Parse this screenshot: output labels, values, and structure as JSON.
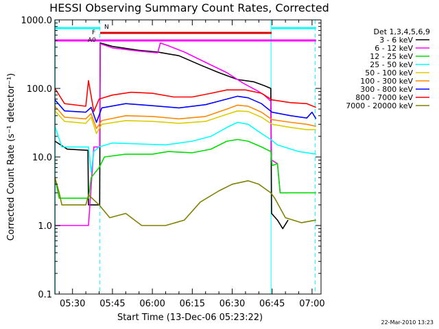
{
  "chart_data": {
    "type": "line",
    "title": "HESSI Observing Summary Count Rates, Corrected",
    "xlabel": "Start Time (13-Dec-06 05:23:22)",
    "ylabel": "Corrected Count Rate (s⁻¹ detector⁻¹)",
    "y_scale": "log",
    "ylim": [
      0.1,
      1000
    ],
    "y_ticks": [
      "1000.0",
      "100.0",
      "10.0",
      "1.0",
      "0.1"
    ],
    "x_range_min": [
      23.37,
      123.37
    ],
    "x_ticks": [
      {
        "min": 30,
        "label": "05:30"
      },
      {
        "min": 45,
        "label": "05:45"
      },
      {
        "min": 60,
        "label": "06:00"
      },
      {
        "min": 75,
        "label": "06:15"
      },
      {
        "min": 90,
        "label": "06:30"
      },
      {
        "min": 105,
        "label": "06:45"
      },
      {
        "min": 120,
        "label": "07:00"
      }
    ],
    "legend_title": "Det 1,3,4,5,6,9",
    "legend_position": "right",
    "series": [
      {
        "name": "3 - 6 keV",
        "color": "#000000",
        "points": [
          [
            23.4,
            17
          ],
          [
            28,
            13
          ],
          [
            35.8,
            12.5
          ],
          [
            36,
            2
          ],
          [
            39,
            2
          ],
          [
            40.2,
            2
          ],
          [
            40.4,
            460
          ],
          [
            45,
            410
          ],
          [
            55,
            360
          ],
          [
            62,
            340
          ],
          [
            70,
            300
          ],
          [
            78,
            220
          ],
          [
            85,
            170
          ],
          [
            92,
            135
          ],
          [
            98,
            125
          ],
          [
            102,
            110
          ],
          [
            104.5,
            100
          ],
          [
            104.8,
            1.5
          ],
          [
            107,
            1.2
          ],
          [
            109,
            0.9
          ],
          [
            111,
            1.2
          ]
        ]
      },
      {
        "name": "6 - 12 keV",
        "color": "#ff00ff",
        "points": [
          [
            23.4,
            1
          ],
          [
            36,
            1
          ],
          [
            38,
            14
          ],
          [
            40.2,
            14
          ],
          [
            40.4,
            450
          ],
          [
            45,
            390
          ],
          [
            55,
            350
          ],
          [
            62,
            330
          ],
          [
            63,
            460
          ],
          [
            66,
            420
          ],
          [
            72,
            340
          ],
          [
            80,
            240
          ],
          [
            88,
            170
          ],
          [
            94,
            120
          ],
          [
            100,
            90
          ],
          [
            102,
            80
          ],
          [
            104.5,
            65
          ],
          [
            104.8,
            9
          ],
          [
            107,
            8
          ],
          [
            108,
            3
          ],
          [
            111,
            3
          ]
        ]
      },
      {
        "name": "12 - 25 keV",
        "color": "#00dd00",
        "points": [
          [
            23.4,
            5
          ],
          [
            25,
            2.5
          ],
          [
            36,
            2.5
          ],
          [
            37,
            5
          ],
          [
            40,
            7
          ],
          [
            42,
            10
          ],
          [
            50,
            11
          ],
          [
            60,
            11
          ],
          [
            66,
            12
          ],
          [
            75,
            11.5
          ],
          [
            82,
            13
          ],
          [
            88,
            17
          ],
          [
            92,
            18
          ],
          [
            96,
            17
          ],
          [
            101,
            14
          ],
          [
            104.5,
            12
          ],
          [
            105,
            7.5
          ],
          [
            107,
            8
          ],
          [
            108,
            3
          ],
          [
            120,
            3
          ],
          [
            121.5,
            3
          ]
        ]
      },
      {
        "name": "25 - 50 keV",
        "color": "#00ffff",
        "points": [
          [
            23.4,
            28
          ],
          [
            26,
            14
          ],
          [
            36,
            14
          ],
          [
            37,
            6
          ],
          [
            38,
            12
          ],
          [
            40,
            14
          ],
          [
            45,
            16
          ],
          [
            55,
            15.5
          ],
          [
            65,
            15
          ],
          [
            75,
            17
          ],
          [
            82,
            20
          ],
          [
            88,
            27
          ],
          [
            92,
            32
          ],
          [
            96,
            30
          ],
          [
            101,
            22
          ],
          [
            104.5,
            18
          ],
          [
            107,
            15
          ],
          [
            115,
            12
          ],
          [
            121.5,
            11
          ]
        ]
      },
      {
        "name": "50 - 100 keV",
        "color": "#ddcc00",
        "points": [
          [
            23.4,
            47
          ],
          [
            27,
            33
          ],
          [
            35,
            31
          ],
          [
            37,
            38
          ],
          [
            39,
            22
          ],
          [
            41,
            30
          ],
          [
            50,
            34
          ],
          [
            60,
            33
          ],
          [
            70,
            31
          ],
          [
            80,
            33
          ],
          [
            88,
            42
          ],
          [
            92,
            47
          ],
          [
            96,
            46
          ],
          [
            101,
            38
          ],
          [
            105,
            30
          ],
          [
            112,
            27
          ],
          [
            118,
            25
          ],
          [
            121.5,
            25
          ]
        ]
      },
      {
        "name": "100 - 300 keV",
        "color": "#ff8800",
        "points": [
          [
            23.4,
            55
          ],
          [
            27,
            38
          ],
          [
            35,
            36
          ],
          [
            37,
            43
          ],
          [
            39,
            26
          ],
          [
            41,
            34
          ],
          [
            50,
            40
          ],
          [
            60,
            39
          ],
          [
            70,
            36
          ],
          [
            80,
            39
          ],
          [
            88,
            50
          ],
          [
            92,
            57
          ],
          [
            96,
            55
          ],
          [
            101,
            45
          ],
          [
            105,
            35
          ],
          [
            112,
            32
          ],
          [
            118,
            30
          ],
          [
            121.5,
            28
          ]
        ]
      },
      {
        "name": "300 - 800 keV",
        "color": "#0000ff",
        "points": [
          [
            23.4,
            68
          ],
          [
            27,
            47
          ],
          [
            35,
            45
          ],
          [
            37,
            53
          ],
          [
            39,
            32
          ],
          [
            41,
            52
          ],
          [
            50,
            60
          ],
          [
            60,
            56
          ],
          [
            70,
            52
          ],
          [
            80,
            58
          ],
          [
            88,
            70
          ],
          [
            92,
            77
          ],
          [
            96,
            73
          ],
          [
            101,
            60
          ],
          [
            105,
            45
          ],
          [
            112,
            40
          ],
          [
            118,
            37
          ],
          [
            120,
            45
          ],
          [
            121.5,
            36
          ]
        ]
      },
      {
        "name": "800 - 7000 keV",
        "color": "#ff0000",
        "points": [
          [
            23.4,
            100
          ],
          [
            27,
            60
          ],
          [
            35,
            55
          ],
          [
            36,
            130
          ],
          [
            38,
            46
          ],
          [
            40,
            70
          ],
          [
            45,
            80
          ],
          [
            52,
            88
          ],
          [
            60,
            85
          ],
          [
            68,
            75
          ],
          [
            75,
            75
          ],
          [
            82,
            85
          ],
          [
            88,
            95
          ],
          [
            95,
            95
          ],
          [
            101,
            85
          ],
          [
            105,
            68
          ],
          [
            112,
            62
          ],
          [
            118,
            60
          ],
          [
            121.5,
            53
          ]
        ]
      },
      {
        "name": "7000 - 20000 keV",
        "color": "#808000",
        "points": [
          [
            23.4,
            5
          ],
          [
            25,
            3
          ],
          [
            26,
            2
          ],
          [
            35,
            2
          ],
          [
            36,
            2.8
          ],
          [
            40,
            2
          ],
          [
            44,
            1.3
          ],
          [
            50,
            1.5
          ],
          [
            56,
            1
          ],
          [
            65,
            1
          ],
          [
            72,
            1.2
          ],
          [
            78,
            2.2
          ],
          [
            85,
            3.2
          ],
          [
            90,
            4
          ],
          [
            96,
            4.5
          ],
          [
            100,
            4
          ],
          [
            104.5,
            3
          ],
          [
            106,
            2.5
          ],
          [
            110,
            1.3
          ],
          [
            116,
            1.1
          ],
          [
            121.5,
            1.2
          ]
        ]
      }
    ],
    "markers": {
      "N": {
        "label": "N",
        "color": "#00ffff",
        "segments": [
          [
            23.4,
            40.4
          ],
          [
            104.8,
            121.5
          ]
        ]
      },
      "F": {
        "label": "F",
        "color": "#dd0000",
        "segments": [
          [
            40.4,
            104.8
          ]
        ]
      },
      "A0": {
        "label": "A0",
        "color": "#ff00ff",
        "segments": [
          [
            23.4,
            121.5
          ]
        ]
      }
    },
    "vertical_lines": [
      {
        "min": 23.5,
        "style": "solid",
        "color": "#00ffff"
      },
      {
        "min": 40.3,
        "style": "dashed",
        "color": "#00ffff"
      },
      {
        "min": 104.6,
        "style": "solid",
        "color": "#00ffff"
      },
      {
        "min": 121.2,
        "style": "dashed",
        "color": "#00ffff"
      }
    ],
    "footer": "22-Mar-2010 13:23"
  }
}
